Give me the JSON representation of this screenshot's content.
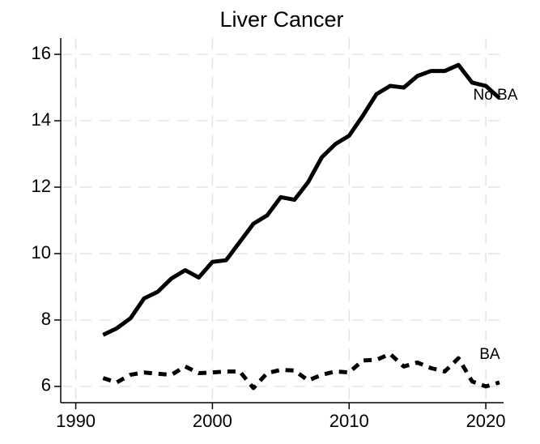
{
  "chart_data": {
    "type": "line",
    "title": "Liver Cancer",
    "x": [
      1992,
      1993,
      1994,
      1995,
      1996,
      1997,
      1998,
      1999,
      2000,
      2001,
      2002,
      2003,
      2004,
      2005,
      2006,
      2007,
      2008,
      2009,
      2010,
      2011,
      2012,
      2013,
      2014,
      2015,
      2016,
      2017,
      2018,
      2019,
      2020,
      2021
    ],
    "series": [
      {
        "name": "No BA",
        "color": "#000000",
        "style": "solid",
        "values": [
          7.55,
          7.75,
          8.05,
          8.65,
          8.85,
          9.25,
          9.5,
          9.28,
          9.75,
          9.8,
          10.35,
          10.9,
          11.15,
          11.7,
          11.62,
          12.15,
          12.9,
          13.3,
          13.55,
          14.15,
          14.8,
          15.05,
          15.0,
          15.35,
          15.5,
          15.5,
          15.68,
          15.15,
          15.05,
          14.68
        ]
      },
      {
        "name": "BA",
        "color": "#000000",
        "style": "dashed",
        "values": [
          6.25,
          6.12,
          6.35,
          6.42,
          6.38,
          6.35,
          6.6,
          6.4,
          6.42,
          6.45,
          6.45,
          5.95,
          6.4,
          6.5,
          6.48,
          6.18,
          6.35,
          6.45,
          6.42,
          6.78,
          6.8,
          6.98,
          6.6,
          6.72,
          6.55,
          6.45,
          6.85,
          6.15,
          6.0,
          6.12
        ]
      }
    ],
    "xlim": [
      1988.9,
      2021.3
    ],
    "xticks": [
      1990,
      2000,
      2010,
      2020
    ],
    "ylim": [
      5.51,
      16.49
    ],
    "yticks": [
      6,
      8,
      10,
      12,
      14,
      16
    ],
    "grid": true
  }
}
